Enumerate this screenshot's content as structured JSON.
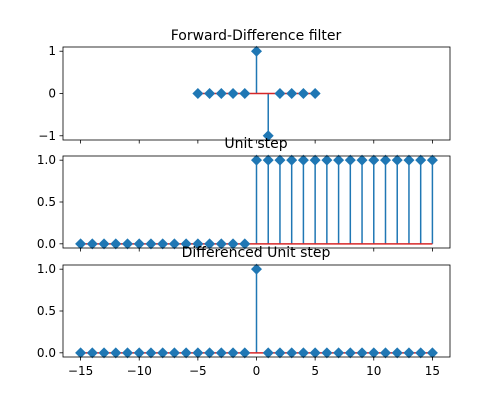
{
  "figure": {
    "background": "#ffffff"
  },
  "style": {
    "stem_color": "#1f77b4",
    "marker_color": "#1f77b4",
    "baseline_color": "#d62728",
    "axes_color": "#000000",
    "marker": "diamond"
  },
  "chart_data": [
    {
      "type": "stem",
      "title": "Forward-Difference filter",
      "xlabel": "",
      "ylabel": "",
      "x": [
        -5,
        -4,
        -3,
        -2,
        -1,
        0,
        1,
        2,
        3,
        4,
        5
      ],
      "y": [
        0,
        0,
        0,
        0,
        0,
        1,
        -1,
        0,
        0,
        0,
        0
      ],
      "xlim": [
        -16.5,
        16.5
      ],
      "ylim": [
        -1.1,
        1.1
      ],
      "yticks": [
        -1,
        0,
        1
      ],
      "ytick_labels": [
        "−1",
        "0",
        "1"
      ],
      "xticks": [
        -15,
        -10,
        -5,
        0,
        5,
        10,
        15
      ],
      "xtick_labels": [],
      "baseline": 0,
      "grid": false,
      "legend": false
    },
    {
      "type": "stem",
      "title": "Unit step",
      "xlabel": "",
      "ylabel": "",
      "x": [
        -15,
        -14,
        -13,
        -12,
        -11,
        -10,
        -9,
        -8,
        -7,
        -6,
        -5,
        -4,
        -3,
        -2,
        -1,
        0,
        1,
        2,
        3,
        4,
        5,
        6,
        7,
        8,
        9,
        10,
        11,
        12,
        13,
        14,
        15
      ],
      "y": [
        0,
        0,
        0,
        0,
        0,
        0,
        0,
        0,
        0,
        0,
        0,
        0,
        0,
        0,
        0,
        1,
        1,
        1,
        1,
        1,
        1,
        1,
        1,
        1,
        1,
        1,
        1,
        1,
        1,
        1,
        1
      ],
      "xlim": [
        -16.5,
        16.5
      ],
      "ylim": [
        -0.05,
        1.05
      ],
      "yticks": [
        0,
        0.5,
        1
      ],
      "ytick_labels": [
        "0.0",
        "0.5",
        "1.0"
      ],
      "xticks": [
        -15,
        -10,
        -5,
        0,
        5,
        10,
        15
      ],
      "xtick_labels": [],
      "baseline": 0,
      "grid": false,
      "legend": false
    },
    {
      "type": "stem",
      "title": "Differenced Unit step",
      "xlabel": "",
      "ylabel": "",
      "x": [
        -15,
        -14,
        -13,
        -12,
        -11,
        -10,
        -9,
        -8,
        -7,
        -6,
        -5,
        -4,
        -3,
        -2,
        -1,
        0,
        1,
        2,
        3,
        4,
        5,
        6,
        7,
        8,
        9,
        10,
        11,
        12,
        13,
        14,
        15
      ],
      "y": [
        0,
        0,
        0,
        0,
        0,
        0,
        0,
        0,
        0,
        0,
        0,
        0,
        0,
        0,
        0,
        1,
        0,
        0,
        0,
        0,
        0,
        0,
        0,
        0,
        0,
        0,
        0,
        0,
        0,
        0,
        0
      ],
      "xlim": [
        -16.5,
        16.5
      ],
      "ylim": [
        -0.05,
        1.05
      ],
      "yticks": [
        0,
        0.5,
        1
      ],
      "ytick_labels": [
        "0.0",
        "0.5",
        "1.0"
      ],
      "xticks": [
        -15,
        -10,
        -5,
        0,
        5,
        10,
        15
      ],
      "xtick_labels": [
        "−15",
        "−10",
        "−5",
        "0",
        "5",
        "10",
        "15"
      ],
      "baseline": 0,
      "grid": false,
      "legend": false
    }
  ]
}
